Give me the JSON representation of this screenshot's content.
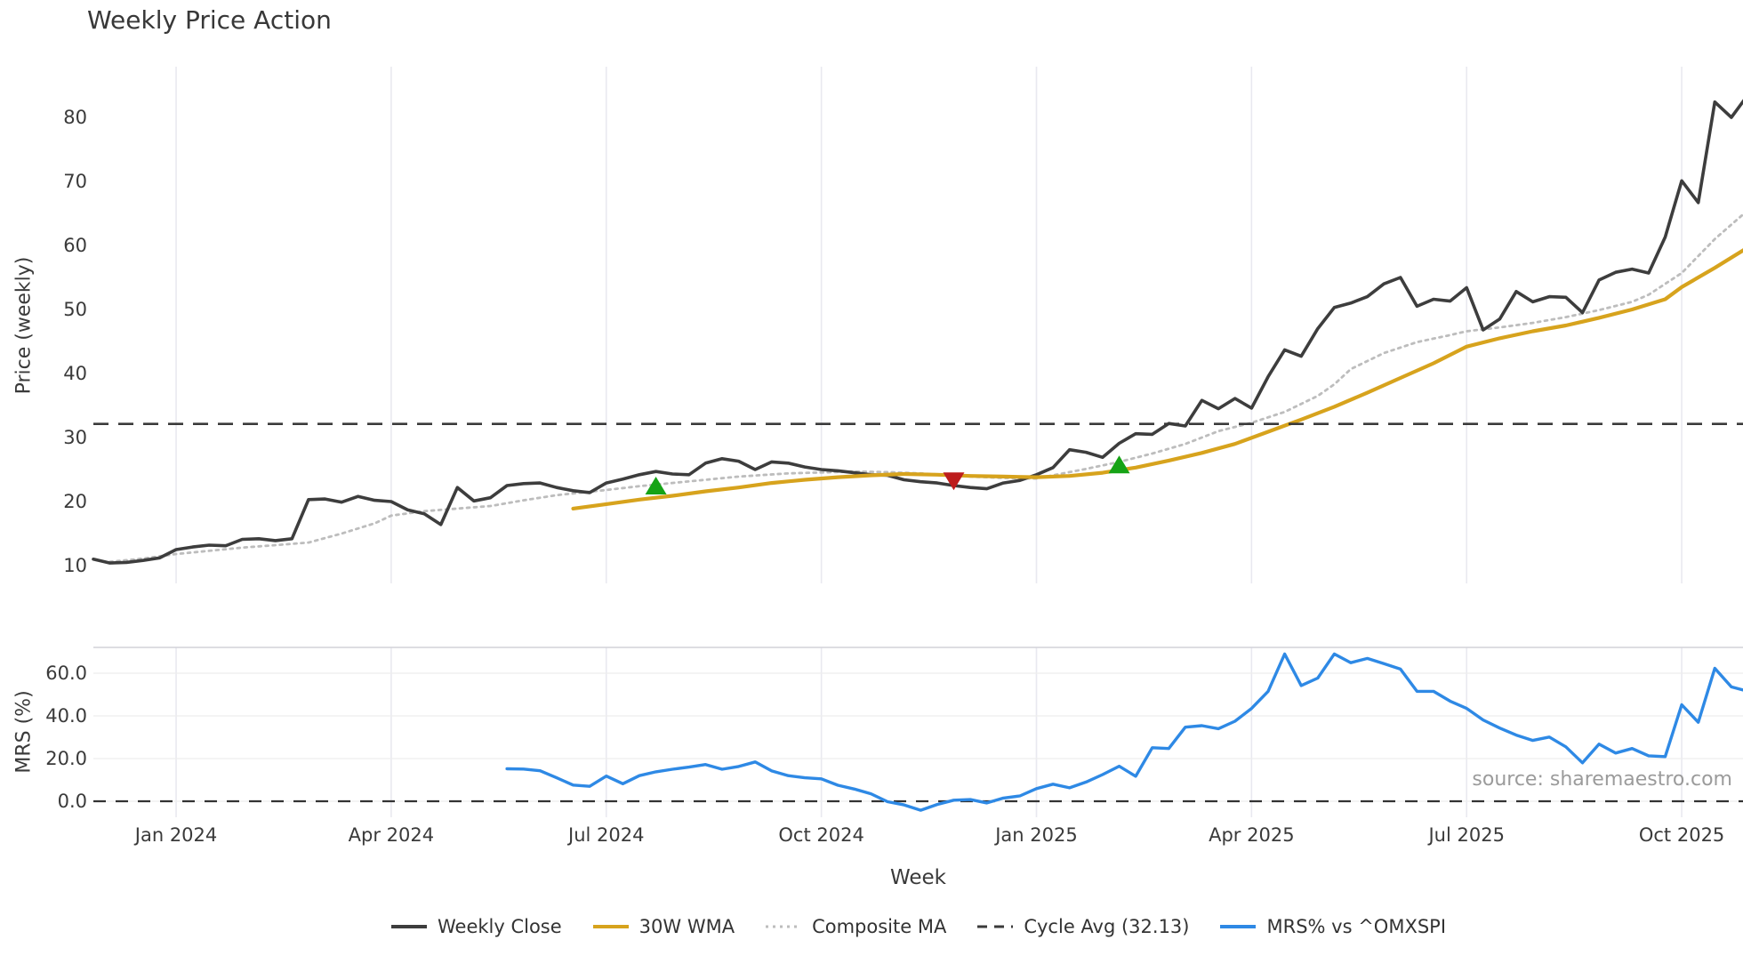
{
  "title": "Weekly Price Action",
  "source_note": "source: sharemaestro.com",
  "colors": {
    "weekly_close": "#3d3d3d",
    "wma_30w": "#d7a31d",
    "composite_ma": "#bdbdbd",
    "cycle_avg": "#3a3a3a",
    "mrs_line": "#2e89e5",
    "buy_marker": "#16a316",
    "sell_marker": "#bd1c1c",
    "gridline": "#e9e9f0",
    "mrs_gridline": "#ededed",
    "mrs_top_spine": "#d2d2d9",
    "zero_dash": "#333333",
    "tick_text": "#3a3a3a",
    "source_text": "#9b9b9b"
  },
  "legend_items": [
    {
      "label": "Weekly Close",
      "color": "#3d3d3d",
      "dash": "solid",
      "thickness": 4
    },
    {
      "label": "30W WMA",
      "color": "#d7a31d",
      "dash": "solid",
      "thickness": 4
    },
    {
      "label": "Composite MA",
      "color": "#bdbdbd",
      "dash": "dotted",
      "thickness": 3
    },
    {
      "label": "Cycle Avg (32.13)",
      "color": "#3a3a3a",
      "dash": "dashed",
      "thickness": 3
    },
    {
      "label": "MRS% vs ^OMXSPI",
      "color": "#2e89e5",
      "dash": "solid",
      "thickness": 4
    }
  ],
  "chart_data": {
    "type": "line",
    "title": "Weekly Price Action",
    "xlabel": "Week",
    "x_unit": "week_index_from_2023-12",
    "x_ticks": {
      "weeks": [
        5,
        18,
        31,
        44,
        57,
        70,
        83,
        96
      ],
      "labels": [
        "Jan 2024",
        "Apr 2024",
        "Jul 2024",
        "Oct 2024",
        "Jan 2025",
        "Apr 2025",
        "Jul 2025",
        "Oct 2025"
      ]
    },
    "panels": [
      {
        "name": "price",
        "ylabel": "Price (weekly)",
        "ylim": [
          7.2,
          88.0
        ],
        "yticks": [
          10,
          20,
          30,
          40,
          50,
          60,
          70,
          80
        ],
        "grid": "vertical-only",
        "cycle_avg_value": 32.13,
        "series": [
          {
            "name": "Weekly Close",
            "style": "solid",
            "color": "#3d3d3d",
            "start_week": 0,
            "values": [
              11.0,
              10.4,
              10.5,
              10.8,
              11.2,
              12.5,
              12.9,
              13.2,
              13.1,
              14.1,
              14.2,
              13.9,
              14.2,
              20.3,
              20.4,
              19.9,
              20.8,
              20.2,
              20.0,
              18.7,
              18.1,
              16.4,
              22.2,
              20.1,
              20.6,
              22.5,
              22.8,
              22.9,
              22.2,
              21.7,
              21.4,
              22.9,
              23.5,
              24.2,
              24.7,
              24.3,
              24.2,
              26.0,
              26.7,
              26.3,
              25.0,
              26.2,
              26.0,
              25.4,
              25.0,
              24.8,
              24.5,
              24.2,
              24.1,
              23.4,
              23.1,
              22.9,
              22.5,
              22.2,
              22.0,
              22.9,
              23.3,
              24.2,
              25.3,
              28.1,
              27.7,
              26.9,
              29.1,
              30.6,
              30.5,
              32.2,
              31.8,
              35.8,
              34.5,
              36.1,
              34.6,
              39.5,
              43.7,
              42.7,
              47.0,
              50.3,
              51.0,
              52.0,
              54.0,
              55.0,
              50.5,
              51.6,
              51.3,
              53.4,
              46.8,
              48.5,
              52.8,
              51.2,
              52.0,
              51.9,
              49.5,
              54.6,
              55.8,
              56.3,
              55.7,
              61.3,
              70.1,
              66.7,
              82.4,
              80.0,
              83.5
            ]
          },
          {
            "name": "30W WMA",
            "style": "solid",
            "color": "#d7a31d",
            "points": [
              [
                29,
                18.9
              ],
              [
                31,
                19.6
              ],
              [
                33,
                20.3
              ],
              [
                35,
                20.9
              ],
              [
                37,
                21.6
              ],
              [
                39,
                22.2
              ],
              [
                41,
                22.9
              ],
              [
                43,
                23.4
              ],
              [
                45,
                23.8
              ],
              [
                47,
                24.1
              ],
              [
                49,
                24.3
              ],
              [
                51,
                24.2
              ],
              [
                53,
                24.0
              ],
              [
                55,
                23.9
              ],
              [
                57,
                23.8
              ],
              [
                59,
                24.0
              ],
              [
                61,
                24.5
              ],
              [
                63,
                25.3
              ],
              [
                65,
                26.4
              ],
              [
                67,
                27.6
              ],
              [
                69,
                29.0
              ],
              [
                71,
                30.9
              ],
              [
                73,
                32.8
              ],
              [
                75,
                34.8
              ],
              [
                77,
                37.0
              ],
              [
                79,
                39.3
              ],
              [
                81,
                41.6
              ],
              [
                83,
                44.2
              ],
              [
                85,
                45.5
              ],
              [
                87,
                46.6
              ],
              [
                89,
                47.5
              ],
              [
                91,
                48.7
              ],
              [
                93,
                50.0
              ],
              [
                95,
                51.6
              ],
              [
                96,
                53.5
              ],
              [
                98,
                56.5
              ],
              [
                100,
                59.7
              ]
            ]
          },
          {
            "name": "Composite MA",
            "style": "dotted",
            "color": "#bdbdbd",
            "points": [
              [
                1,
                10.6
              ],
              [
                3,
                11.1
              ],
              [
                5,
                11.8
              ],
              [
                7,
                12.3
              ],
              [
                9,
                12.8
              ],
              [
                11,
                13.2
              ],
              [
                13,
                13.6
              ],
              [
                15,
                15.0
              ],
              [
                17,
                16.6
              ],
              [
                18,
                17.8
              ],
              [
                20,
                18.5
              ],
              [
                22,
                18.9
              ],
              [
                24,
                19.3
              ],
              [
                26,
                20.2
              ],
              [
                28,
                21.0
              ],
              [
                31,
                21.8
              ],
              [
                33,
                22.4
              ],
              [
                35,
                22.9
              ],
              [
                37,
                23.4
              ],
              [
                39,
                23.9
              ],
              [
                42,
                24.4
              ],
              [
                46,
                24.7
              ],
              [
                48,
                24.6
              ],
              [
                50,
                24.4
              ],
              [
                53,
                23.9
              ],
              [
                55,
                23.7
              ],
              [
                57,
                23.6
              ],
              [
                60,
                25.1
              ],
              [
                62,
                26.2
              ],
              [
                64,
                27.5
              ],
              [
                66,
                29.0
              ],
              [
                68,
                31.0
              ],
              [
                70,
                32.3
              ],
              [
                72,
                34.0
              ],
              [
                74,
                36.5
              ],
              [
                75,
                38.3
              ],
              [
                76,
                40.7
              ],
              [
                78,
                43.2
              ],
              [
                80,
                44.9
              ],
              [
                82,
                46.0
              ],
              [
                83,
                46.6
              ],
              [
                85,
                47.2
              ],
              [
                87,
                47.9
              ],
              [
                89,
                48.8
              ],
              [
                91,
                49.9
              ],
              [
                93,
                51.2
              ],
              [
                94,
                52.3
              ],
              [
                96,
                55.7
              ],
              [
                98,
                61.0
              ],
              [
                100,
                65.5
              ]
            ]
          }
        ],
        "markers": {
          "buy": {
            "shape": "triangle-up",
            "color": "#16a316",
            "points": [
              [
                34,
                22.5
              ],
              [
                62,
                25.8
              ]
            ]
          },
          "sell": {
            "shape": "triangle-down",
            "color": "#bd1c1c",
            "points": [
              [
                52,
                23.3
              ]
            ]
          }
        }
      },
      {
        "name": "mrs",
        "ylabel": "MRS (%)",
        "ylim": [
          -7.9,
          72.1
        ],
        "yticks": [
          0,
          20,
          40,
          60
        ],
        "ytick_labels": [
          "0.0",
          "20.0",
          "40.0",
          "60.0"
        ],
        "zero_line": {
          "value": 0,
          "style": "dashed",
          "color": "#333333"
        },
        "series": [
          {
            "name": "MRS% vs ^OMXSPI",
            "style": "solid",
            "color": "#2e89e5",
            "start_week": 25,
            "values": [
              15.2,
              15.1,
              14.3,
              11.0,
              7.6,
              7.0,
              11.8,
              8.2,
              12.0,
              13.8,
              15.0,
              16.0,
              17.2,
              15.0,
              16.3,
              18.4,
              14.2,
              12.0,
              11.0,
              10.5,
              7.5,
              5.7,
              3.5,
              -0.2,
              -1.7,
              -4.2,
              -1.5,
              0.5,
              0.8,
              -0.8,
              1.5,
              2.5,
              5.9,
              8.0,
              6.3,
              9.0,
              12.5,
              16.4,
              11.7,
              25.1,
              24.7,
              34.7,
              35.4,
              34.0,
              37.5,
              43.5,
              51.5,
              69.0,
              54.2,
              57.7,
              69.0,
              64.9,
              66.9,
              64.5,
              61.9,
              51.5,
              51.5,
              46.9,
              43.5,
              38.1,
              34.3,
              31.0,
              28.5,
              30.1,
              25.5,
              18.0,
              26.8,
              22.6,
              24.7,
              21.3,
              20.9,
              45.2,
              37.0,
              62.3,
              53.6,
              51.5
            ]
          }
        ]
      }
    ],
    "legend": [
      "Weekly Close",
      "30W WMA",
      "Composite MA",
      "Cycle Avg (32.13)",
      "MRS% vs ^OMXSPI"
    ],
    "legend_position": "bottom-center"
  }
}
